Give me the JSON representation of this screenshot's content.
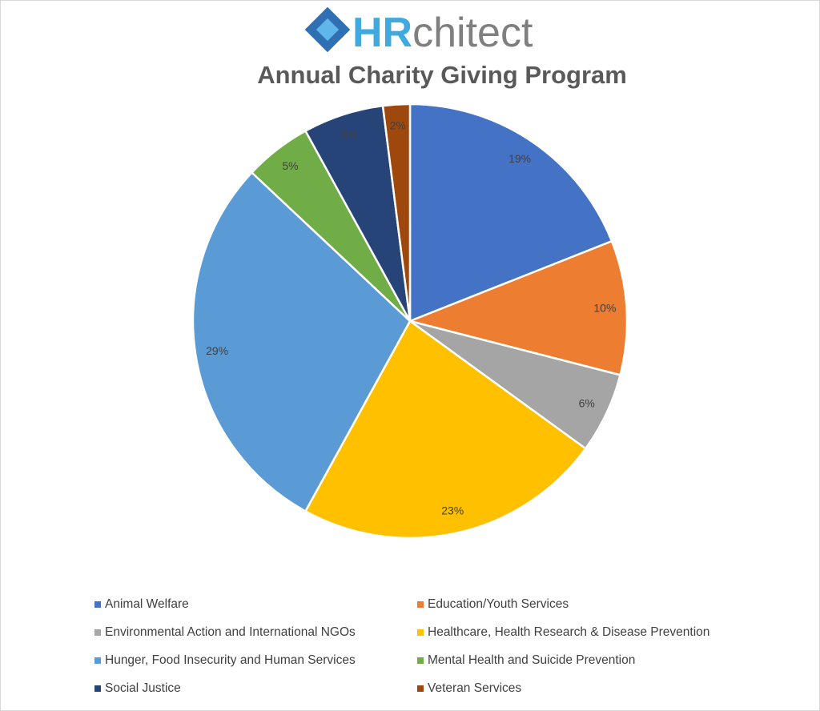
{
  "logo": {
    "strong": "HR",
    "rest": "chitect"
  },
  "chart_data": {
    "type": "pie",
    "title": "Annual Charity Giving Program",
    "categories": [
      "Animal Welfare",
      "Education/Youth Services",
      "Environmental Action and International NGOs",
      "Healthcare, Health Research & Disease Prevention",
      "Hunger, Food Insecurity and Human Services",
      "Mental Health and Suicide Prevention",
      "Social Justice",
      "Veteran Services"
    ],
    "values": [
      19,
      10,
      6,
      23,
      29,
      5,
      6,
      2
    ],
    "value_labels": [
      "19%",
      "10%",
      "6%",
      "23%",
      "29%",
      "5%",
      "6%",
      "2%"
    ],
    "colors": [
      "#4472c4",
      "#ed7d31",
      "#a5a5a5",
      "#ffc000",
      "#5b9bd5",
      "#70ad47",
      "#264478",
      "#9e480e"
    ],
    "legend": "bottom"
  }
}
